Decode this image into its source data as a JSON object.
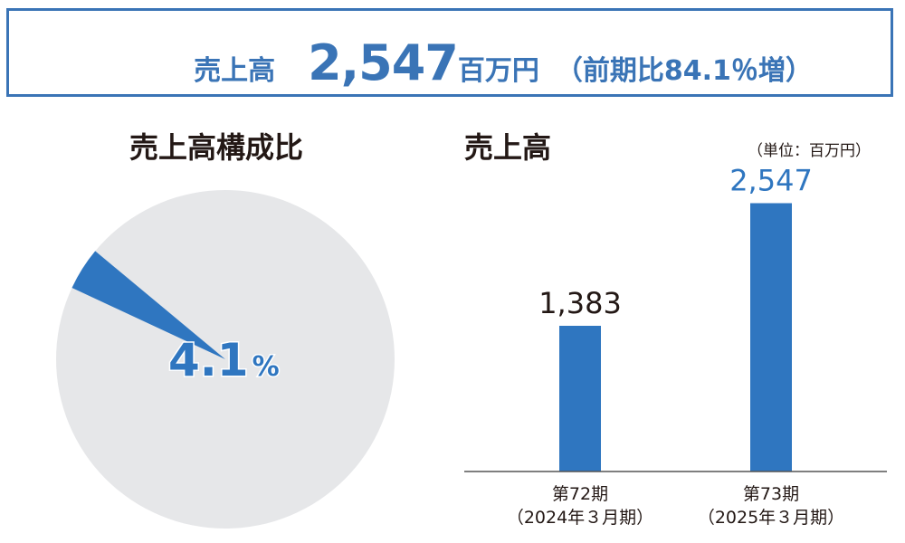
{
  "header": {
    "label": "売上高",
    "value": "2,547",
    "unit": "百万円",
    "comparison": "（前期比84.1％増）"
  },
  "pie_section": {
    "title": "売上高構成比"
  },
  "bar_section": {
    "title": "売上高",
    "unit_note": "（単位：百万円）"
  },
  "colors": {
    "accent": "#2f76c0",
    "pie_background": "#e6e7e9",
    "text": "#231815",
    "axis": "#555555"
  },
  "chart_data": [
    {
      "type": "pie",
      "title": "売上高構成比",
      "slices": [
        {
          "value": 4.1,
          "highlighted": true
        },
        {
          "value": 95.9,
          "highlighted": false
        }
      ],
      "label_number": "4.1",
      "label_unit": "%"
    },
    {
      "type": "bar",
      "title": "売上高",
      "categories": [
        {
          "line1": "第72期",
          "line2": "（2024年３月期）"
        },
        {
          "line1": "第73期",
          "line2": "（2025年３月期）"
        }
      ],
      "values": [
        1383,
        2547
      ],
      "value_labels": [
        "1,383",
        "2,547"
      ],
      "ylim": [
        0,
        2800
      ],
      "unit": "百万円"
    }
  ]
}
